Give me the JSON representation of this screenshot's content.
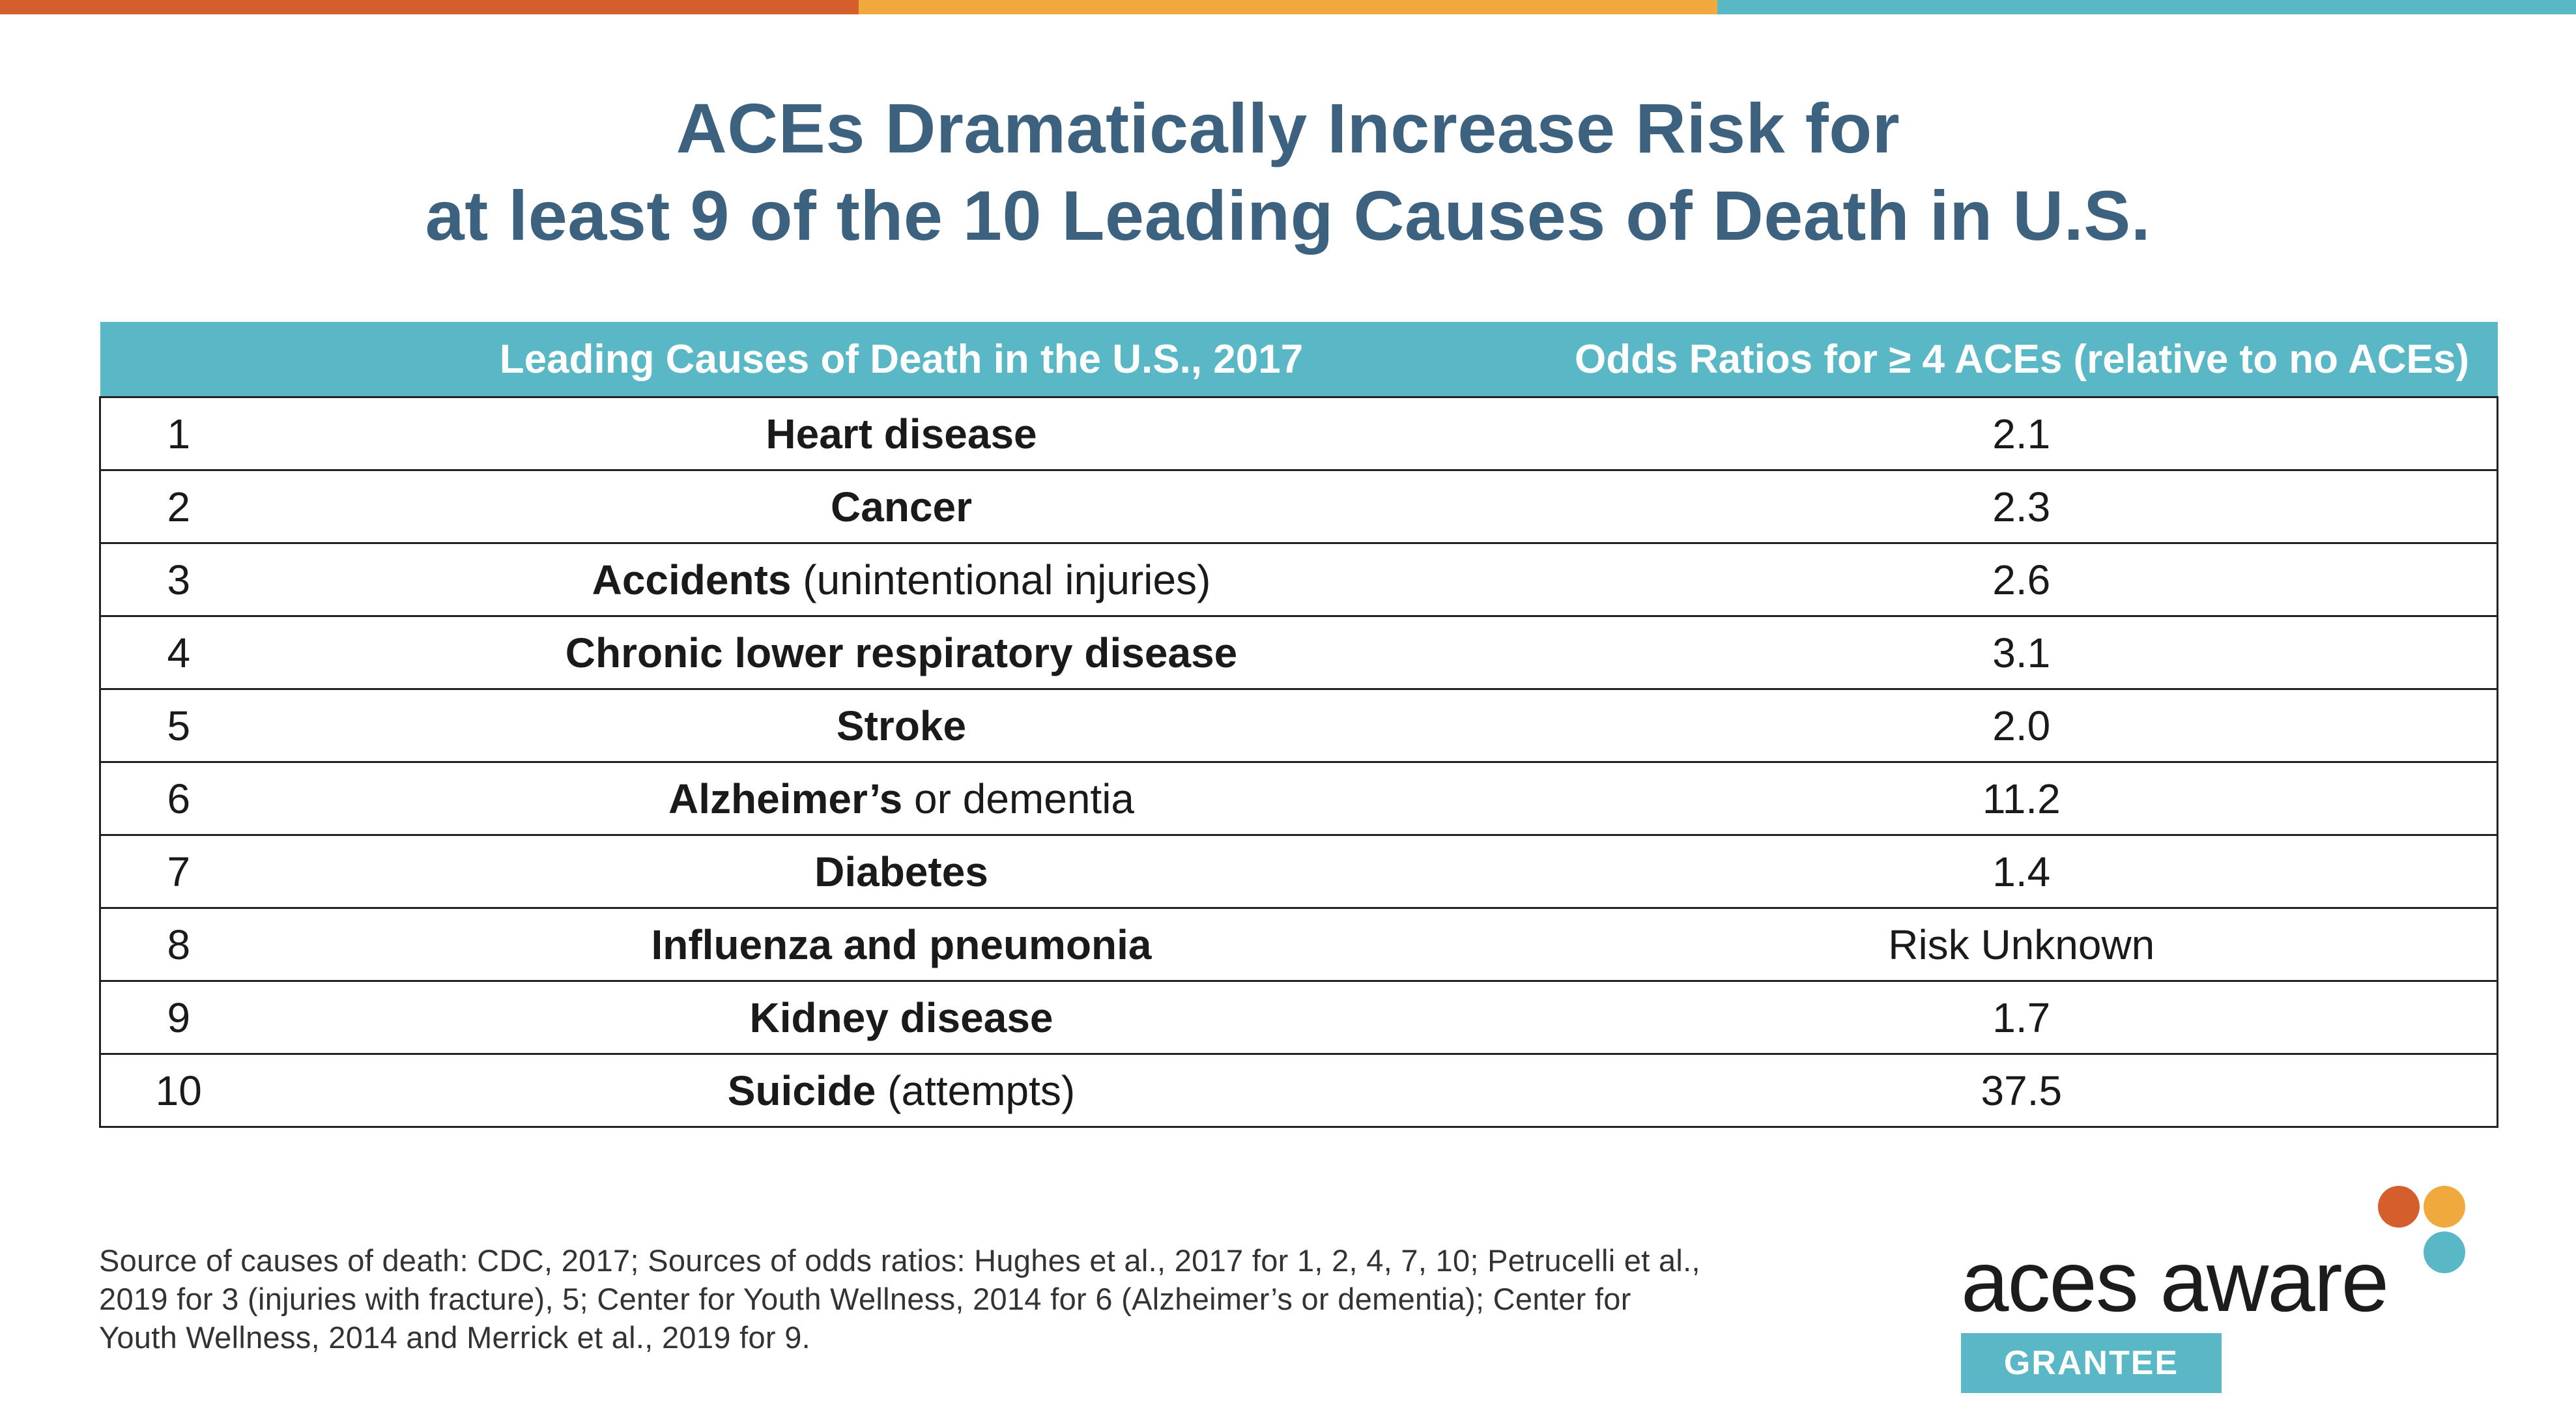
{
  "colors": {
    "bar_1": "#d45f2c",
    "bar_2": "#f0a93c",
    "bar_3": "#5ab7c6",
    "title": "#3d6280",
    "header_bg": "#5ab7c6",
    "logo_orange": "#d45f2c",
    "logo_yellow": "#f0a93c",
    "logo_teal": "#5ab7c6"
  },
  "title": {
    "line1": "ACEs Dramatically Increase Risk for",
    "line2": "at least 9 of the 10 Leading Causes of Death in U.S."
  },
  "table": {
    "header": {
      "rank": "",
      "cause": "Leading Causes of Death in the U.S., 2017",
      "odds": "Odds Ratios for ≥ 4 ACEs (relative to no ACEs)"
    },
    "rows": [
      {
        "rank": "1",
        "cause_bold": "Heart disease",
        "cause_plain": "",
        "odds": "2.1"
      },
      {
        "rank": "2",
        "cause_bold": "Cancer",
        "cause_plain": "",
        "odds": "2.3"
      },
      {
        "rank": "3",
        "cause_bold": "Accidents",
        "cause_plain": " (unintentional injuries)",
        "odds": "2.6"
      },
      {
        "rank": "4",
        "cause_bold": "Chronic lower respiratory disease",
        "cause_plain": "",
        "odds": "3.1"
      },
      {
        "rank": "5",
        "cause_bold": "Stroke",
        "cause_plain": "",
        "odds": "2.0"
      },
      {
        "rank": "6",
        "cause_bold": "Alzheimer’s",
        "cause_plain": " or dementia",
        "odds": "11.2"
      },
      {
        "rank": "7",
        "cause_bold": "Diabetes",
        "cause_plain": "",
        "odds": "1.4"
      },
      {
        "rank": "8",
        "cause_bold": "Influenza and pneumonia",
        "cause_plain": "",
        "odds": "Risk Unknown"
      },
      {
        "rank": "9",
        "cause_bold": "Kidney disease",
        "cause_plain": "",
        "odds": "1.7"
      },
      {
        "rank": "10",
        "cause_bold": "Suicide",
        "cause_plain": " (attempts)",
        "odds": "37.5"
      }
    ]
  },
  "source": {
    "line1": "Source of causes of death: CDC, 2017; Sources of odds ratios: Hughes et al., 2017 for 1, 2, 4, 7, 10; Petrucelli et al.,",
    "line2": "2019 for 3 (injuries with fracture), 5; Center for Youth Wellness, 2014 for 6 (Alzheimer’s or dementia); Center for",
    "line3": "Youth Wellness, 2014 and Merrick et al., 2019 for 9."
  },
  "logo": {
    "wordmark": "aces aware",
    "badge": "GRANTEE"
  }
}
